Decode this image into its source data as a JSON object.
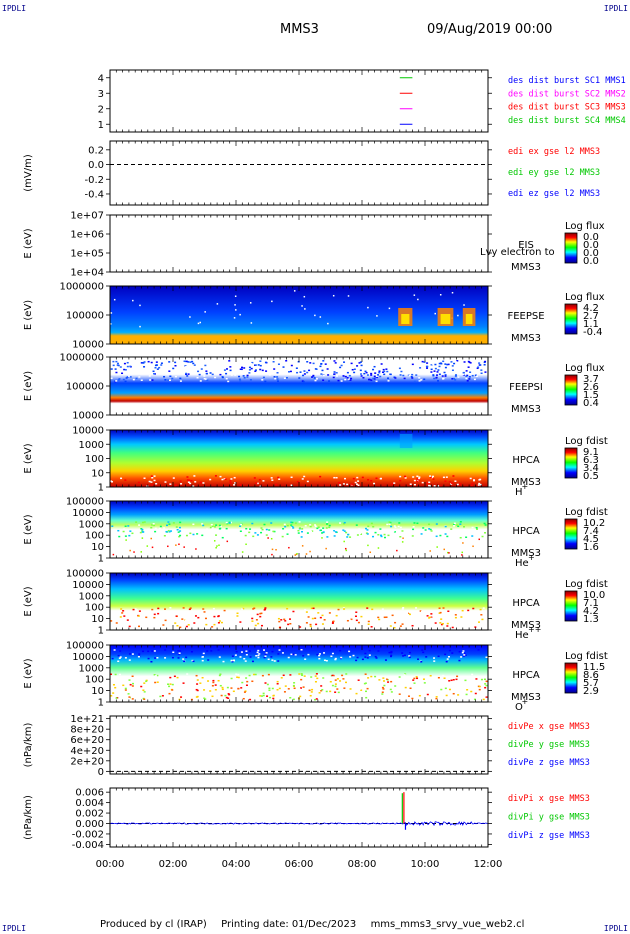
{
  "corner_label": "IPDLI",
  "header": {
    "title": "MMS3",
    "datetime": "09/Aug/2019 00:00"
  },
  "footer": {
    "produced_by": "Produced by cl (IRAP)",
    "printing_date": "Printing date: 01/Dec/2023",
    "file": "mms_mms3_srvy_vue_web2.cl"
  },
  "time_axis": {
    "range": [
      0,
      12
    ],
    "ticks": [
      "00:00",
      "02:00",
      "04:00",
      "06:00",
      "08:00",
      "10:00",
      "12:00"
    ]
  },
  "colors": {
    "blue": "#0000ff",
    "magenta": "#ff00ff",
    "red": "#ff0000",
    "green": "#00c800",
    "navy": "#00008b"
  },
  "chart_data": [
    {
      "id": "dist",
      "type": "line",
      "ylabel": "",
      "ylim": [
        0.5,
        4.5
      ],
      "ticks": [
        "1",
        "2",
        "3",
        "4"
      ],
      "legend": [
        {
          "text": "des dist burst SC1 MMS1",
          "color": "#0000ff"
        },
        {
          "text": "des dist burst SC2 MMS2",
          "color": "#ff00ff"
        },
        {
          "text": "des dist burst SC3 MMS3",
          "color": "#ff0000"
        },
        {
          "text": "des dist burst SC4 MMS4",
          "color": "#00c800"
        }
      ],
      "segments": [
        {
          "level": 4,
          "t0": 9.2,
          "t1": 9.6,
          "color": "#00c800"
        },
        {
          "level": 3,
          "t0": 9.2,
          "t1": 9.6,
          "color": "#ff0000"
        },
        {
          "level": 2,
          "t0": 9.2,
          "t1": 9.6,
          "color": "#ff00ff"
        },
        {
          "level": 1,
          "t0": 9.2,
          "t1": 9.6,
          "color": "#0000ff"
        }
      ]
    },
    {
      "id": "edi",
      "type": "line",
      "ylabel": "(mV/m)",
      "ylim": [
        -0.55,
        0.32
      ],
      "ticks": [
        "0.2",
        "0.0",
        "-0.2",
        "-0.4"
      ],
      "legend": [
        {
          "text": "edi ex gse l2 MMS3",
          "color": "#ff0000"
        },
        {
          "text": "edi ey gse l2 MMS3",
          "color": "#00c800"
        },
        {
          "text": "edi ez gse l2 MMS3",
          "color": "#0000ff"
        }
      ]
    },
    {
      "id": "eis",
      "type": "heatmap",
      "ylabel": "E (eV)",
      "ticks": [
        "1e+07",
        "1e+06",
        "1e+05",
        "1e+04"
      ],
      "instrument": [
        "EIS",
        "MMS3"
      ],
      "overlay_text": "Lvy electron to",
      "colorbar": {
        "title": "Log flux",
        "labels": [
          "0.0",
          "0.0",
          "0.0",
          "0.0"
        ]
      }
    },
    {
      "id": "feepse",
      "type": "heatmap",
      "ylabel": "E (eV)",
      "ticks": [
        "1000000",
        "100000",
        "10000"
      ],
      "instrument": [
        "FEEPSE",
        "MMS3"
      ],
      "colorbar": {
        "title": "Log flux",
        "labels": [
          "4.2",
          "2.7",
          "1.1",
          "-0.4"
        ]
      }
    },
    {
      "id": "feepsi",
      "type": "heatmap",
      "ylabel": "E (eV)",
      "ticks": [
        "1000000",
        "100000",
        "10000"
      ],
      "instrument": [
        "FEEPSI",
        "MMS3"
      ],
      "colorbar": {
        "title": "Log flux",
        "labels": [
          "3.7",
          "2.6",
          "1.5",
          "0.4"
        ]
      }
    },
    {
      "id": "hpca_h",
      "type": "heatmap",
      "ylabel": "E (eV)",
      "ticks": [
        "10000",
        "1000",
        "100",
        "10",
        "1"
      ],
      "instrument": [
        "HPCA",
        "MMS3"
      ],
      "species": "H",
      "species_sup": "+",
      "colorbar": {
        "title": "Log fdist",
        "labels": [
          "9.1",
          "6.3",
          "3.4",
          "0.5"
        ]
      }
    },
    {
      "id": "hpca_he",
      "type": "heatmap",
      "ylabel": "E (eV)",
      "ticks": [
        "100000",
        "10000",
        "1000",
        "100",
        "10",
        "1"
      ],
      "instrument": [
        "HPCA",
        "MMS3"
      ],
      "species": "He",
      "species_sup": "+",
      "colorbar": {
        "title": "Log fdist",
        "labels": [
          "10.2",
          "7.4",
          "4.5",
          "1.6"
        ]
      }
    },
    {
      "id": "hpca_he2",
      "type": "heatmap",
      "ylabel": "E (eV)",
      "ticks": [
        "100000",
        "10000",
        "1000",
        "100",
        "10",
        "1"
      ],
      "instrument": [
        "HPCA",
        "MMS3"
      ],
      "species": "He",
      "species_sup": "++",
      "colorbar": {
        "title": "Log fdist",
        "labels": [
          "10.0",
          "7.1",
          "4.2",
          "1.3"
        ]
      }
    },
    {
      "id": "hpca_o",
      "type": "heatmap",
      "ylabel": "E (eV)",
      "ticks": [
        "100000",
        "10000",
        "1000",
        "100",
        "10",
        "1"
      ],
      "instrument": [
        "HPCA",
        "MMS3"
      ],
      "species": "O",
      "species_sup": "+",
      "colorbar": {
        "title": "Log fdist",
        "labels": [
          "11.5",
          "8.6",
          "5.7",
          "2.9"
        ]
      }
    },
    {
      "id": "divpe",
      "type": "line",
      "ylabel": "(nPa/km)",
      "ylim": [
        -5e+19,
        1.05e+21
      ],
      "ticks": [
        "1e+21",
        "8e+20",
        "6e+20",
        "4e+20",
        "2e+20",
        "0"
      ],
      "legend": [
        {
          "text": "divPe x gse MMS3",
          "color": "#ff0000"
        },
        {
          "text": "divPe y gse MMS3",
          "color": "#00c800"
        },
        {
          "text": "divPe z gse MMS3",
          "color": "#0000ff"
        }
      ]
    },
    {
      "id": "divpi",
      "type": "line",
      "ylabel": "(nPa/km)",
      "ylim": [
        -0.0045,
        0.0068
      ],
      "ticks": [
        "0.006",
        "0.004",
        "0.002",
        "0.000",
        "-0.002",
        "-0.004"
      ],
      "legend": [
        {
          "text": "divPi x gse MMS3",
          "color": "#ff0000"
        },
        {
          "text": "divPi y gse MMS3",
          "color": "#00c800"
        },
        {
          "text": "divPi z gse MMS3",
          "color": "#0000ff"
        }
      ],
      "spikes": [
        {
          "t": 9.28,
          "value": 0.0058,
          "color": "#00c800"
        },
        {
          "t": 9.33,
          "value": 0.006,
          "color": "#ff0000"
        },
        {
          "t": 9.38,
          "value": -0.0012,
          "color": "#0000ff"
        }
      ]
    }
  ]
}
